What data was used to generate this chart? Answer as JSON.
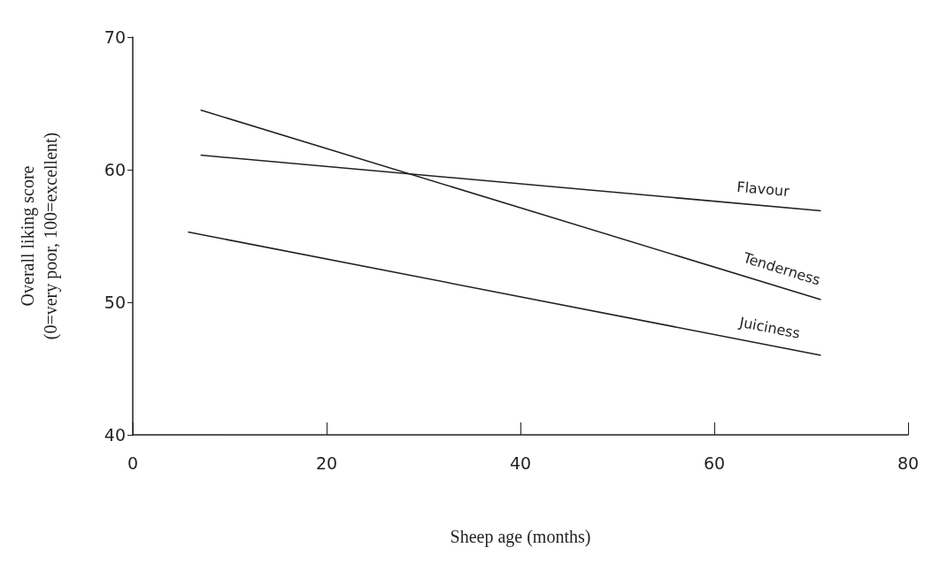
{
  "chart_data": {
    "type": "line",
    "xlabel": "Sheep age (months)",
    "ylabel": "Overall liking score\n(0=very poor, 100=excellent)",
    "xlim": [
      0,
      80
    ],
    "xticks": [
      0,
      20,
      40,
      60,
      80
    ],
    "ylim": [
      40,
      70
    ],
    "yticks": [
      40,
      50,
      60,
      70
    ],
    "grid": false,
    "marker": "none",
    "line_style": "solid",
    "series": [
      {
        "name": "Flavour",
        "color": "#231f20",
        "x": [
          7,
          71
        ],
        "values": [
          61.1,
          56.9
        ]
      },
      {
        "name": "Tenderness",
        "color": "#231f20",
        "x": [
          7,
          71
        ],
        "values": [
          64.5,
          50.2
        ]
      },
      {
        "name": "Juiciness",
        "color": "#231f20",
        "x": [
          5.7,
          71
        ],
        "values": [
          55.3,
          46
        ]
      }
    ]
  }
}
